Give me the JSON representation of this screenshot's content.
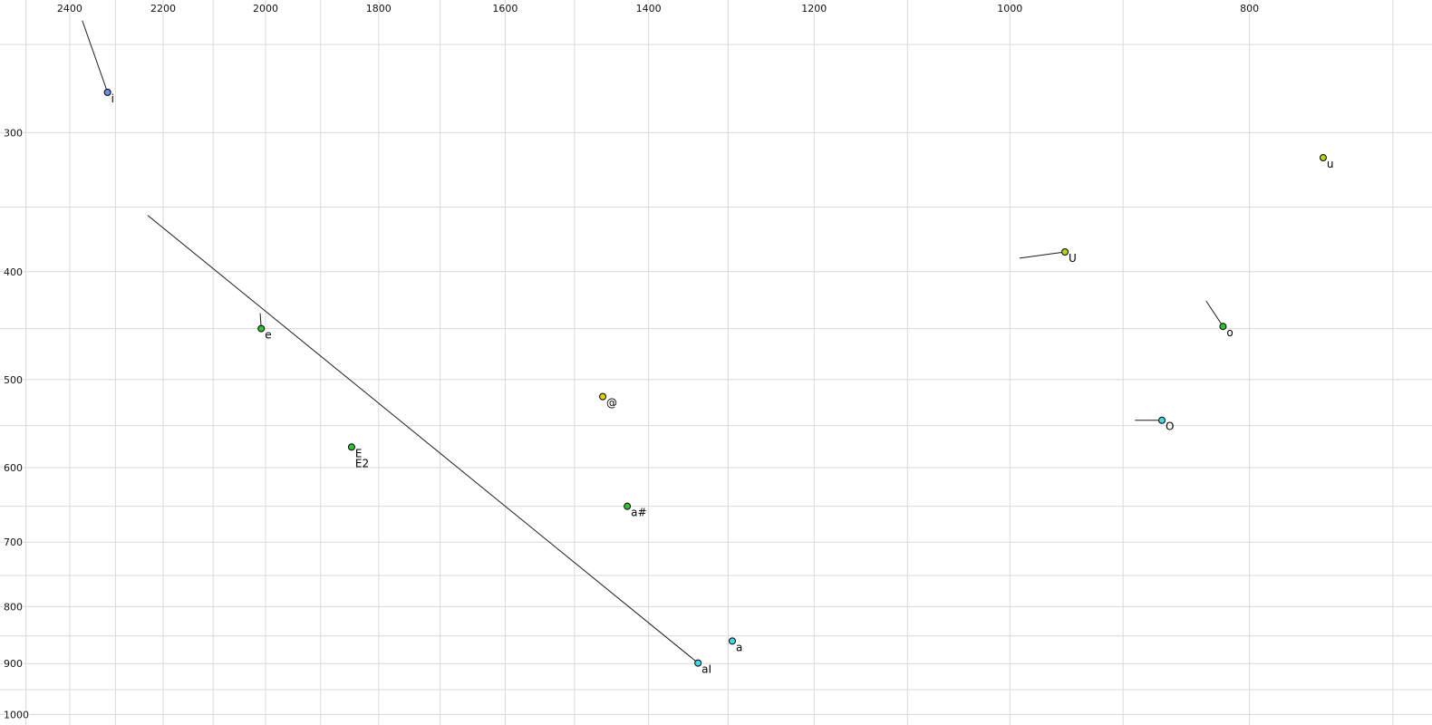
{
  "chart_data": {
    "type": "scatter",
    "title": "",
    "xlabel": "",
    "ylabel": "",
    "x_axis": {
      "scale": "log",
      "reversed": true,
      "ticks_position": "top",
      "left_value": 2561,
      "right_value": 675,
      "major_ticks": [
        2400,
        2200,
        2000,
        1800,
        1600,
        1400,
        1200,
        1000,
        800
      ],
      "minor_grid_start": 2500,
      "minor_grid_end": 700,
      "minor_grid_step": 100
    },
    "y_axis": {
      "scale": "log",
      "increases_downward": true,
      "ticks_position": "left",
      "top_value": 228,
      "bottom_value": 1022,
      "major_ticks": [
        300,
        400,
        500,
        600,
        700,
        800,
        900,
        1000
      ],
      "minor_grid_start": 250,
      "minor_grid_end": 1000,
      "minor_grid_step": 50
    },
    "grid_on": true,
    "grid_color": "#d9d9d9",
    "point_stroke": "#000000",
    "tail_color": "#1a1a1a",
    "legend": "none",
    "points": [
      {
        "label": "i",
        "f2": 2317,
        "f1": 276,
        "fill": "#6d8fe6",
        "tail": {
          "f2": 2372,
          "f1": 238
        }
      },
      {
        "label": "u",
        "f2": 747,
        "f1": 316,
        "fill": "#b2d416"
      },
      {
        "label": "U",
        "f2": 950,
        "f1": 384,
        "fill": "#b2d416",
        "tail": {
          "f2": 991,
          "f1": 389
        }
      },
      {
        "label": "e",
        "f2": 2008,
        "f1": 450,
        "fill": "#2fc22f",
        "tail": {
          "f2": 2010,
          "f1": 436
        }
      },
      {
        "label": "o",
        "f2": 820,
        "f1": 448,
        "fill": "#2fc22f",
        "tail": {
          "f2": 833,
          "f1": 425
        }
      },
      {
        "label": "@",
        "f2": 1461,
        "f1": 518,
        "fill": "#e0cf00"
      },
      {
        "label": "O",
        "f2": 868,
        "f1": 544,
        "fill": "#43d6e8",
        "tail": {
          "f2": 890,
          "f1": 544
        }
      },
      {
        "label": "E",
        "f2": 1846,
        "f1": 575,
        "fill": "#2fc22f",
        "label2": "E2"
      },
      {
        "label": "a#",
        "f2": 1428,
        "f1": 650,
        "fill": "#2fc22f"
      },
      {
        "label": "a",
        "f2": 1295,
        "f1": 859,
        "fill": "#43d6e8"
      },
      {
        "label": "aI",
        "f2": 1337,
        "f1": 899,
        "fill": "#43d6e8",
        "tail": {
          "f2": 2232,
          "f1": 356
        }
      }
    ]
  }
}
